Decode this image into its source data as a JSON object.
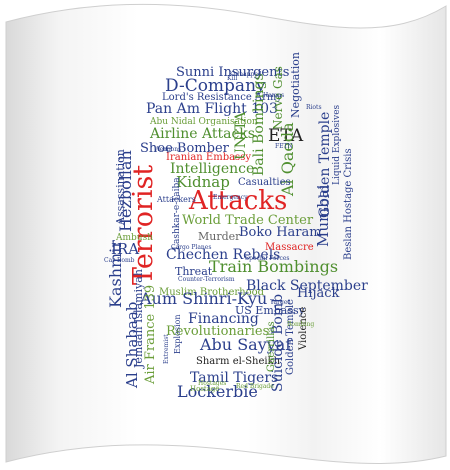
{
  "colors": {
    "red": "#e02424",
    "navy": "#2b3f8c",
    "green": "#4f8f2f",
    "olive": "#6b9e3a",
    "teal": "#2f7a6a",
    "gray": "#666666",
    "dark": "#222222"
  },
  "words": [
    {
      "text": "Sunni Insurgents",
      "color": "navy"
    },
    {
      "text": "Hezbollah",
      "color": "navy"
    },
    {
      "text": "D-Company",
      "color": "navy"
    },
    {
      "text": "Lord's Resistance Army",
      "color": "navy"
    },
    {
      "text": "Pan Am Flight 103",
      "color": "navy"
    },
    {
      "text": "Nerve Gas",
      "color": "green"
    },
    {
      "text": "Abu Nidal Organisation",
      "color": "olive"
    },
    {
      "text": "Negotiation",
      "color": "navy"
    },
    {
      "text": "Airline Attacks",
      "color": "green"
    },
    {
      "text": "Bali Bombings",
      "color": "green"
    },
    {
      "text": "ETA",
      "color": "dark"
    },
    {
      "text": "Shoe Bomber",
      "color": "navy"
    },
    {
      "text": "Iranian Embassy",
      "color": "red"
    },
    {
      "text": "UNITA",
      "color": "green"
    },
    {
      "text": "Golden Temple",
      "color": "navy"
    },
    {
      "text": "Liquid Explosives",
      "color": "navy"
    },
    {
      "text": "Intelligence",
      "color": "green"
    },
    {
      "text": "Al Qaeda",
      "color": "green"
    },
    {
      "text": "Beslan Hostage Crisis",
      "color": "navy"
    },
    {
      "text": "Kidnap",
      "color": "green"
    },
    {
      "text": "Casualties",
      "color": "navy"
    },
    {
      "text": "Attacks",
      "color": "red"
    },
    {
      "text": "Terrorist",
      "color": "red"
    },
    {
      "text": "Assassination",
      "color": "navy"
    },
    {
      "text": "Lashkar-e-Taiba",
      "color": "navy"
    },
    {
      "text": "World Trade Center",
      "color": "olive"
    },
    {
      "text": "Mumbai",
      "color": "navy"
    },
    {
      "text": "Murder",
      "color": "gray"
    },
    {
      "text": "Boko Haram",
      "color": "navy"
    },
    {
      "text": "Chechen Rebels",
      "color": "navy"
    },
    {
      "text": "Massacre",
      "color": "red"
    },
    {
      "text": "IRA",
      "color": "navy"
    },
    {
      "text": "Ambush",
      "color": "olive"
    },
    {
      "text": "Kashmir",
      "color": "navy"
    },
    {
      "text": "Jemaah Islamiyah",
      "color": "navy"
    },
    {
      "text": "Threat",
      "color": "navy"
    },
    {
      "text": "Train Bombings",
      "color": "green"
    },
    {
      "text": "Muslim Brotherhood",
      "color": "olive"
    },
    {
      "text": "Black September",
      "color": "navy"
    },
    {
      "text": "Aum Shinri-Kyu",
      "color": "navy"
    },
    {
      "text": "Hijack",
      "color": "navy"
    },
    {
      "text": "Financing",
      "color": "navy"
    },
    {
      "text": "US Embassy",
      "color": "navy"
    },
    {
      "text": "Revolutionaries",
      "color": "olive"
    },
    {
      "text": "Abu Sayyaf",
      "color": "navy"
    },
    {
      "text": "Al Shabaab",
      "color": "navy"
    },
    {
      "text": "Air France 139",
      "color": "olive"
    },
    {
      "text": "Sharm el-Sheikh",
      "color": "dark"
    },
    {
      "text": "Tamil Tigers",
      "color": "navy"
    },
    {
      "text": "Lockerbie",
      "color": "navy"
    },
    {
      "text": "Suicide Bomb",
      "color": "navy"
    },
    {
      "text": "Golden Temple",
      "color": "navy"
    },
    {
      "text": "Guerrillas",
      "color": "green"
    },
    {
      "text": "Violence",
      "color": "dark"
    },
    {
      "text": "Explosion",
      "color": "navy"
    },
    {
      "text": "Hostage",
      "color": "olive"
    },
    {
      "text": "Extremist",
      "color": "navy"
    },
    {
      "text": "Emergency",
      "color": "navy"
    },
    {
      "text": "Attackers",
      "color": "navy"
    },
    {
      "text": "Car Bomb",
      "color": "navy"
    },
    {
      "text": "Counter-Terrorism",
      "color": "navy"
    },
    {
      "text": "Target",
      "color": "navy"
    },
    {
      "text": "Hamas",
      "color": "navy"
    },
    {
      "text": "Kill",
      "color": "navy"
    },
    {
      "text": "Red Brigade",
      "color": "olive"
    },
    {
      "text": "Bombing",
      "color": "olive"
    },
    {
      "text": "Special Forces",
      "color": "navy"
    },
    {
      "text": "Cargo Planes",
      "color": "navy"
    },
    {
      "text": "Kidnapped",
      "color": "navy"
    },
    {
      "text": "Hostages",
      "color": "olive"
    },
    {
      "text": "FETN",
      "color": "navy"
    },
    {
      "text": "Weapons",
      "color": "navy"
    },
    {
      "text": "Riots",
      "color": "navy"
    }
  ]
}
